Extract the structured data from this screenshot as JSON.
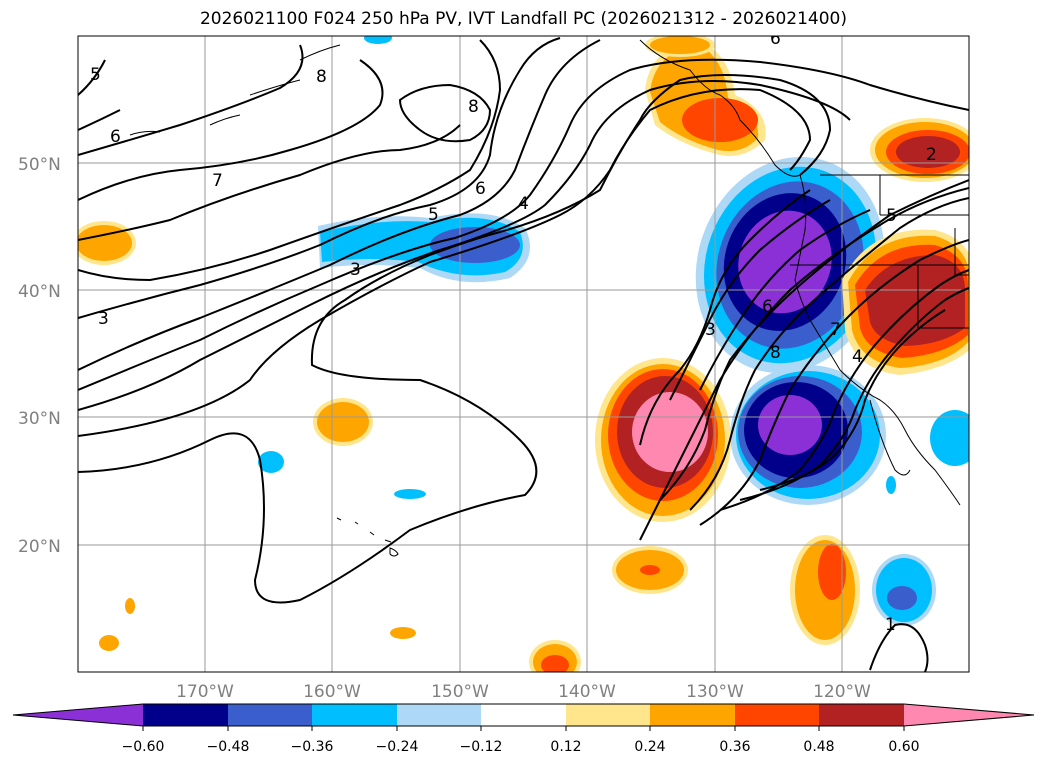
{
  "title": "2026021100 F024 250 hPa PV, IVT Landfall PC (2026021312 - 2026021400)",
  "map": {
    "lat_labels": [
      "50°N",
      "40°N",
      "30°N",
      "20°N"
    ],
    "lon_labels": [
      "170°W",
      "160°W",
      "150°W",
      "140°W",
      "130°W",
      "120°W"
    ],
    "gridlines": true
  },
  "colorbar": {
    "ticks": [
      "−0.60",
      "−0.48",
      "−0.36",
      "−0.24",
      "−0.12",
      "0.12",
      "0.24",
      "0.36",
      "0.48",
      "0.60"
    ],
    "colors": [
      "#8b2fd6",
      "#00008b",
      "#3a5fcd",
      "#00bfff",
      "#add8f6",
      "#ffffff",
      "#ffe68c",
      "#ffa500",
      "#ff4500",
      "#b22222",
      "#ff88b0"
    ]
  },
  "contour_labels": [
    "8",
    "8",
    "5",
    "6",
    "7",
    "6",
    "5",
    "4",
    "3",
    "3",
    "2",
    "5",
    "6",
    "8",
    "3",
    "7",
    "4",
    "1",
    "6"
  ],
  "colors": {
    "purple": "#8b2fd6",
    "navy": "#00008b",
    "royal": "#3a5fcd",
    "sky": "#00bfff",
    "pale_blue": "#add8f6",
    "pale_yellow": "#ffe68c",
    "orange": "#ffa500",
    "red_orange": "#ff4500",
    "firebrick": "#b22222",
    "pink": "#ff88b0"
  }
}
